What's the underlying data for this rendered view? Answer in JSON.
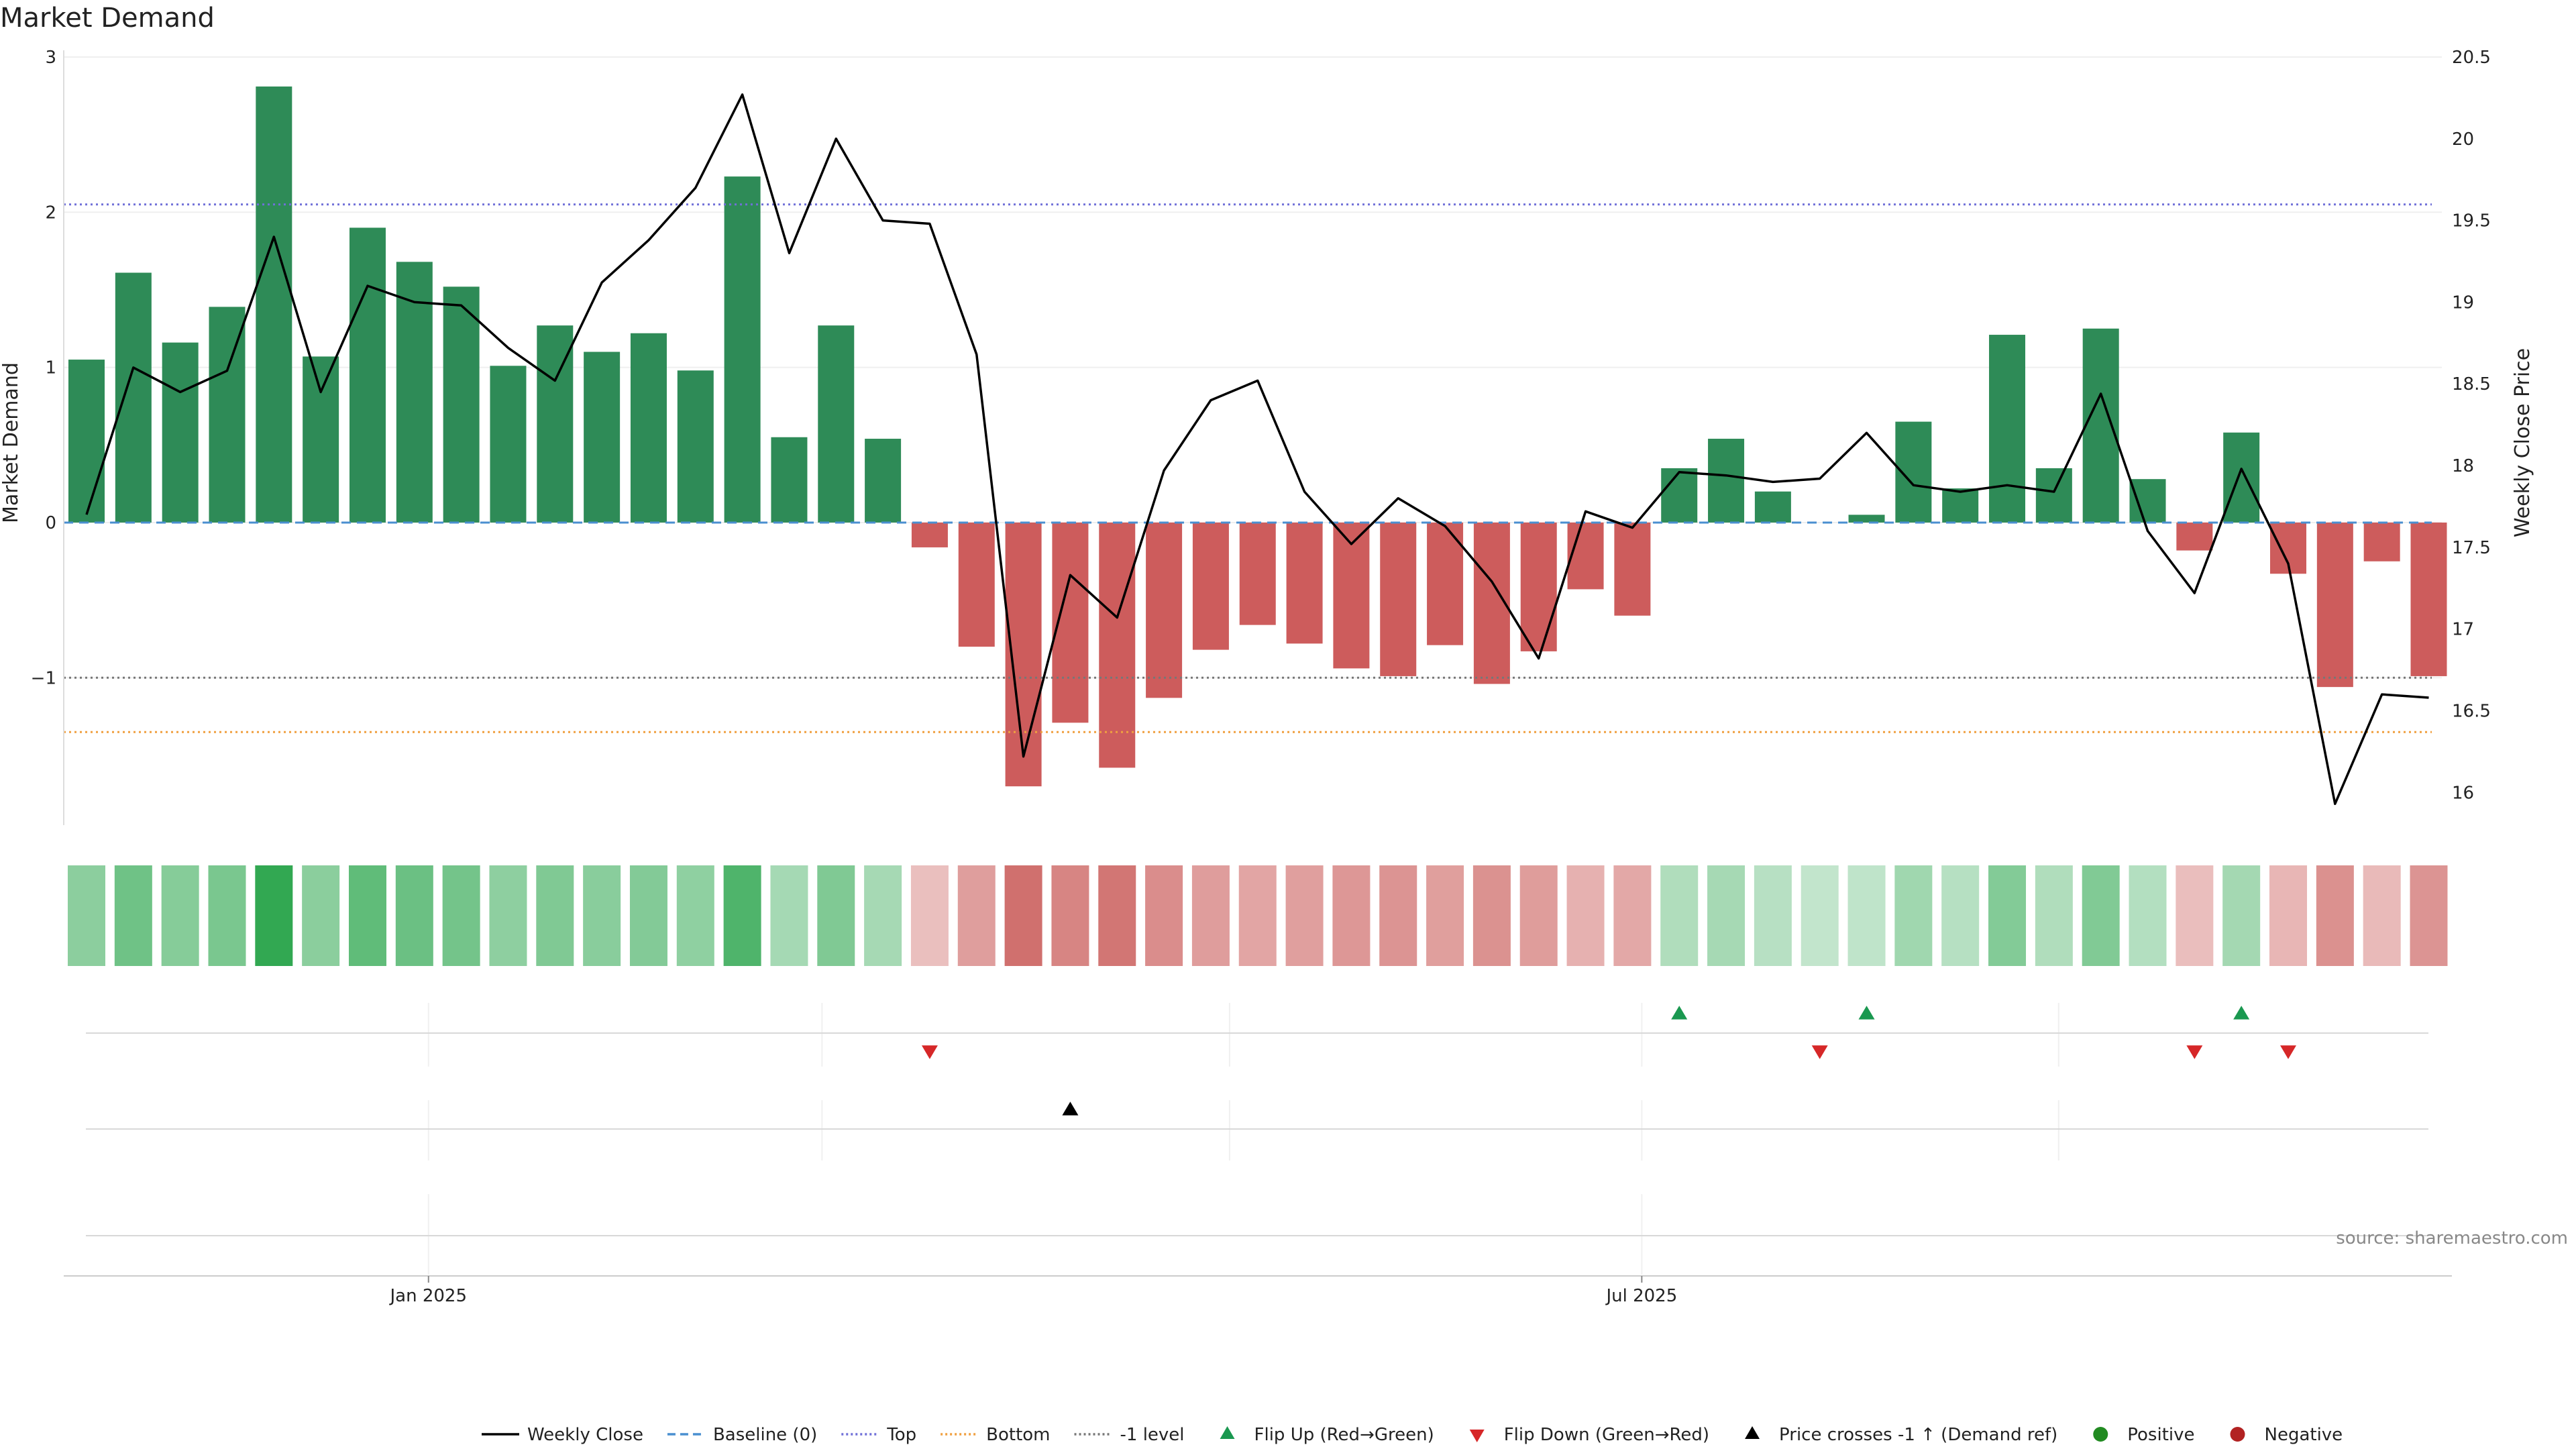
{
  "chart_data": {
    "type": "bar+line",
    "title": "Market Demand",
    "ylabel_left": "Market Demand",
    "ylabel_right": "Weekly Close Price",
    "ylim_left": [
      -1.95,
      3.0
    ],
    "ylim_right": [
      15.8,
      20.5
    ],
    "left_ticks": [
      {
        "v": 3,
        "label": "3"
      },
      {
        "v": 2,
        "label": "2"
      },
      {
        "v": 1,
        "label": "1"
      },
      {
        "v": 0,
        "label": "0"
      },
      {
        "v": -1,
        "label": "−1"
      }
    ],
    "right_ticks": [
      {
        "v": 20.5,
        "label": "20.5"
      },
      {
        "v": 20,
        "label": "20"
      },
      {
        "v": 19.5,
        "label": "19.5"
      },
      {
        "v": 19,
        "label": "19"
      },
      {
        "v": 18.5,
        "label": "18.5"
      },
      {
        "v": 18,
        "label": "18"
      },
      {
        "v": 17.5,
        "label": "17.5"
      },
      {
        "v": 17,
        "label": "17"
      },
      {
        "v": 16.5,
        "label": "16.5"
      },
      {
        "v": 16,
        "label": "16"
      }
    ],
    "x_ticks": [
      {
        "index": 7.3,
        "label": "Jan 2025"
      },
      {
        "index": 33.2,
        "label": "Jul 2025"
      }
    ],
    "x_minor_gridlines": [
      7.3,
      15.7,
      24.4,
      33.2,
      42.1
    ],
    "demand": [
      1.05,
      1.61,
      1.16,
      1.39,
      2.81,
      1.07,
      1.9,
      1.68,
      1.52,
      1.01,
      1.27,
      1.1,
      1.22,
      0.98,
      2.23,
      0.55,
      1.27,
      0.54,
      -0.16,
      -0.8,
      -1.7,
      -1.29,
      -1.58,
      -1.13,
      -0.82,
      -0.66,
      -0.78,
      -0.94,
      -0.99,
      -0.79,
      -1.04,
      -0.83,
      -0.43,
      -0.6,
      0.35,
      0.54,
      0.2,
      0.0,
      0.05,
      0.65,
      0.22,
      1.21,
      0.35,
      1.25,
      0.28,
      -0.18,
      0.58,
      -0.33,
      -1.06,
      -0.25,
      -0.99
    ],
    "close": [
      17.7,
      18.6,
      18.45,
      18.58,
      19.4,
      18.45,
      19.1,
      19.0,
      18.98,
      18.72,
      18.52,
      19.12,
      19.38,
      19.7,
      20.27,
      19.3,
      20.0,
      19.5,
      19.48,
      18.68,
      16.22,
      17.33,
      17.07,
      17.97,
      18.4,
      18.52,
      17.84,
      17.52,
      17.8,
      17.63,
      17.29,
      16.82,
      17.72,
      17.62,
      17.96,
      17.94,
      17.9,
      17.92,
      18.2,
      17.88,
      17.84,
      17.88,
      17.84,
      18.44,
      17.6,
      17.22,
      17.98,
      17.4,
      15.93,
      16.6,
      16.58
    ],
    "reference_lines": {
      "baseline": {
        "name": "Baseline (0)",
        "value": 0,
        "color": "#4a8fd0"
      },
      "top": {
        "name": "Top",
        "value": 2.05,
        "color": "#7070d8"
      },
      "bottom": {
        "name": "Bottom",
        "value": -1.35,
        "color": "#f0a040"
      },
      "minus_one": {
        "name": "-1 level",
        "value": -1,
        "color": "#777777"
      }
    },
    "heat_strip": {
      "type": "heatmap",
      "values_from": "demand"
    },
    "events": {
      "flip_up": [
        34,
        38,
        46
      ],
      "flip_down": [
        18,
        37,
        45,
        47
      ],
      "price_cross": [
        21
      ]
    },
    "colors": {
      "positive_bar": "#2e8b57",
      "negative_bar": "#cd5c5c",
      "price_line": "#000000",
      "flip_up": "#1a9850",
      "flip_down": "#d62728",
      "price_cross": "#000000",
      "positive_marker": "#228b22",
      "negative_marker": "#b22222"
    },
    "legend": [
      {
        "kind": "line",
        "label": "Weekly Close",
        "color": "#000000",
        "dash": ""
      },
      {
        "kind": "line",
        "label": "Baseline (0)",
        "color": "#4a8fd0",
        "dash": "12,7"
      },
      {
        "kind": "line",
        "label": "Top",
        "color": "#7070d8",
        "dash": "3,4"
      },
      {
        "kind": "line",
        "label": "Bottom",
        "color": "#f0a040",
        "dash": "3,4"
      },
      {
        "kind": "line",
        "label": "-1 level",
        "color": "#777777",
        "dash": "3,4"
      },
      {
        "kind": "tri-up",
        "label": "Flip Up (Red→Green)",
        "color": "#1a9850"
      },
      {
        "kind": "tri-down",
        "label": "Flip Down (Green→Red)",
        "color": "#d62728"
      },
      {
        "kind": "tri-up",
        "label": "Price crosses -1 ↑ (Demand ref)",
        "color": "#000000"
      },
      {
        "kind": "dot",
        "label": "Positive",
        "color": "#228b22"
      },
      {
        "kind": "dot",
        "label": "Negative",
        "color": "#b22222"
      }
    ],
    "source": "source: sharemaestro.com"
  }
}
